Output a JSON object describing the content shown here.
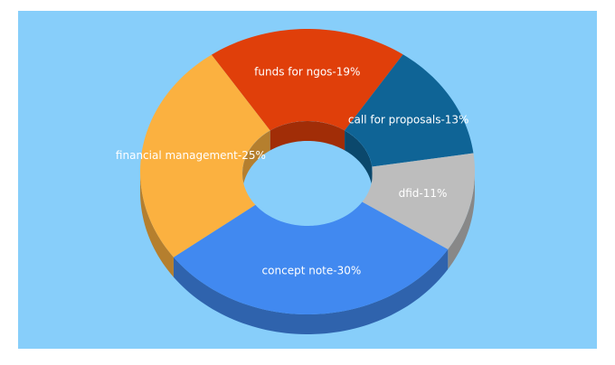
{
  "chart_data": {
    "type": "donut3d",
    "values": [
      19,
      13,
      11,
      30,
      25
    ],
    "value_labels": [
      "funds for ngos-19%",
      "call for proposals-13%",
      "dfid-11%",
      "concept note-30%",
      "financial management-25%"
    ],
    "colors": [
      "#e03f0a",
      "#0f6496",
      "#bdbdbd",
      "#4189f0",
      "#fbb140"
    ]
  }
}
